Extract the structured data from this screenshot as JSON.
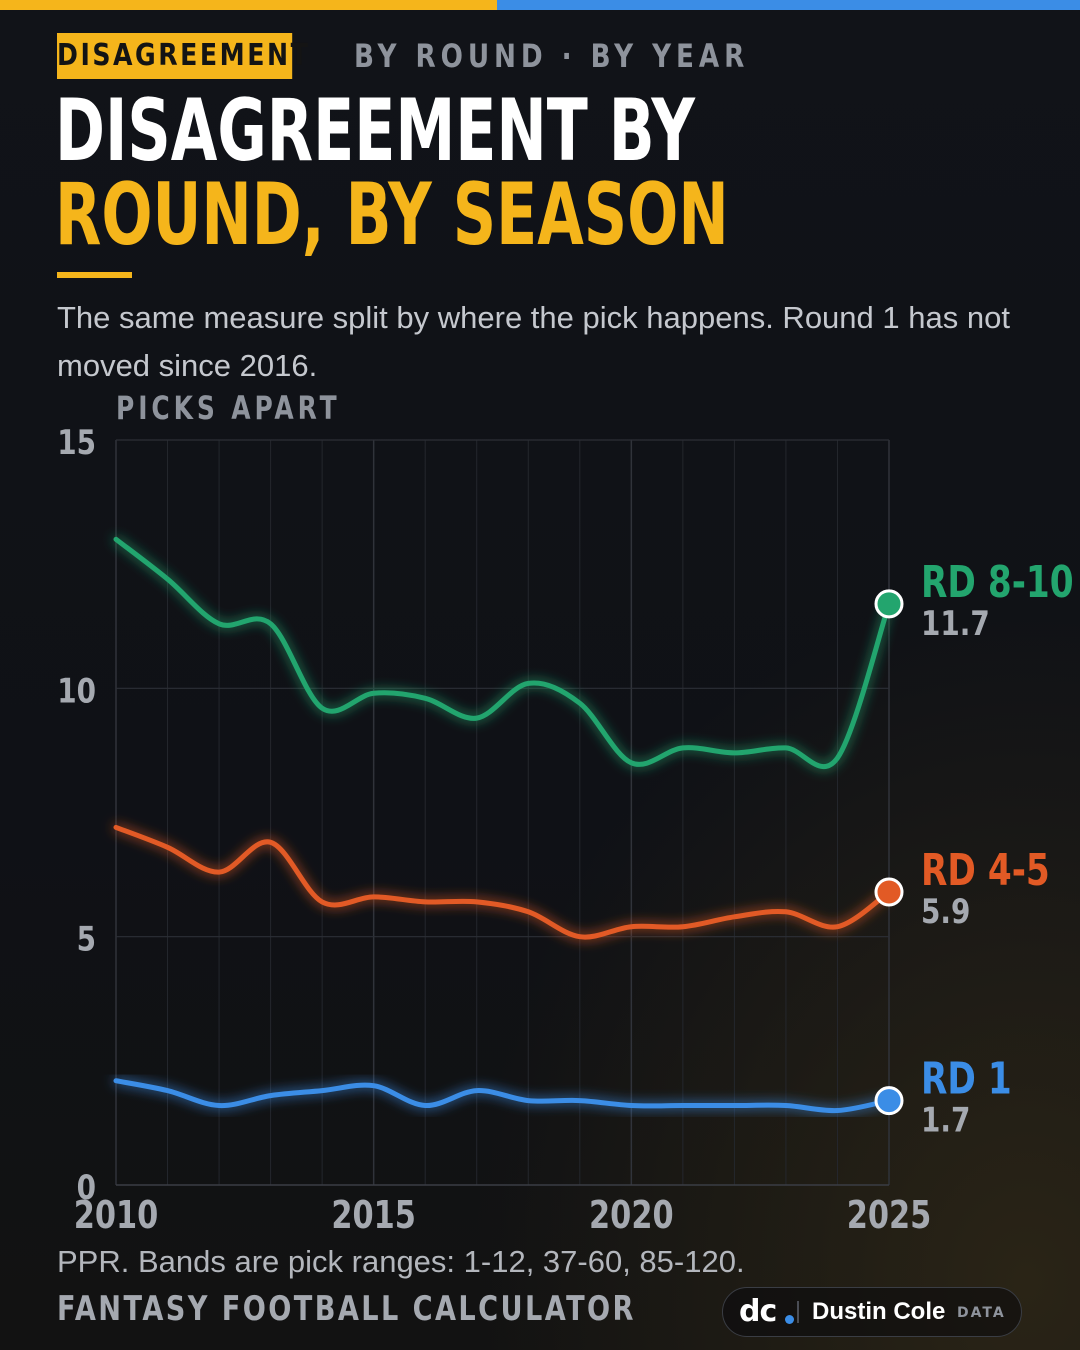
{
  "header": {
    "kicker_badge": "DISAGREEMENT",
    "kicker_rest": "BY ROUND · BY YEAR",
    "title_line1": "DISAGREEMENT BY",
    "title_line2": "ROUND, BY SEASON",
    "subtitle": "The same measure split by where the pick happens. Round 1 has not moved since 2016."
  },
  "chart_data": {
    "type": "line",
    "ylabel": "PICKS APART",
    "xlim": [
      2010,
      2025
    ],
    "ylim": [
      0,
      15
    ],
    "x_ticks": [
      2010,
      2015,
      2020,
      2025
    ],
    "y_ticks": [
      0,
      5,
      10,
      15
    ],
    "grid": true,
    "x": [
      2010,
      2011,
      2012,
      2013,
      2014,
      2015,
      2016,
      2017,
      2018,
      2019,
      2020,
      2021,
      2022,
      2023,
      2024,
      2025
    ],
    "series": [
      {
        "name": "RD 8-10",
        "color": "#23a56e",
        "end_label": "11.7",
        "values": [
          13.0,
          12.2,
          11.3,
          11.3,
          9.6,
          9.9,
          9.8,
          9.4,
          10.1,
          9.7,
          8.5,
          8.8,
          8.7,
          8.8,
          8.6,
          11.7
        ]
      },
      {
        "name": "RD 4-5",
        "color": "#e25a25",
        "end_label": "5.9",
        "values": [
          7.2,
          6.8,
          6.3,
          6.9,
          5.7,
          5.8,
          5.7,
          5.7,
          5.5,
          5.0,
          5.2,
          5.2,
          5.4,
          5.5,
          5.2,
          5.9
        ]
      },
      {
        "name": "RD 1",
        "color": "#3b8de6",
        "end_label": "1.7",
        "values": [
          2.1,
          1.9,
          1.6,
          1.8,
          1.9,
          2.0,
          1.6,
          1.9,
          1.7,
          1.7,
          1.6,
          1.6,
          1.6,
          1.6,
          1.5,
          1.7
        ]
      }
    ]
  },
  "footer": {
    "note": "PPR. Bands are pick ranges: 1-12, 37-60, 85-120.",
    "source": "FANTASY FOOTBALL CALCULATOR",
    "logo_mark": "dc",
    "logo_name": "Dustin Cole",
    "logo_sub": "DATA"
  },
  "colors": {
    "accent": "#f5b51b",
    "secondary": "#3b8de6",
    "background": "#111318"
  }
}
